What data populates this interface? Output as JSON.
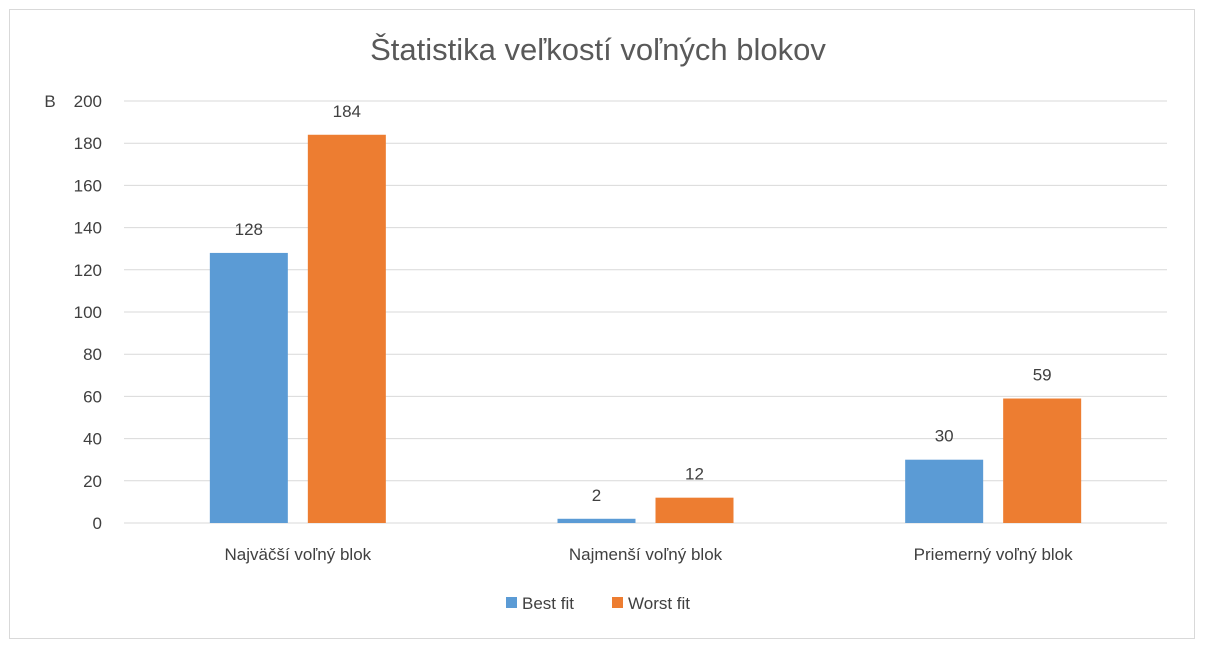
{
  "chart_data": {
    "type": "bar",
    "title": "Štatistika veľkostí voľných blokov",
    "ylabel": "B",
    "xlabel": "",
    "ylim": [
      0,
      200
    ],
    "yticks": [
      0,
      20,
      40,
      60,
      80,
      100,
      120,
      140,
      160,
      180,
      200
    ],
    "categories": [
      "Najväčší voľný blok",
      "Najmenší voľný blok",
      "Priemerný voľný blok"
    ],
    "series": [
      {
        "name": "Best fit",
        "values": [
          128,
          2,
          30
        ],
        "color": "#5b9bd5"
      },
      {
        "name": "Worst fit",
        "values": [
          184,
          12,
          59
        ],
        "color": "#ed7d31"
      }
    ],
    "grid": true,
    "legend": "bottom",
    "data_labels": true
  }
}
